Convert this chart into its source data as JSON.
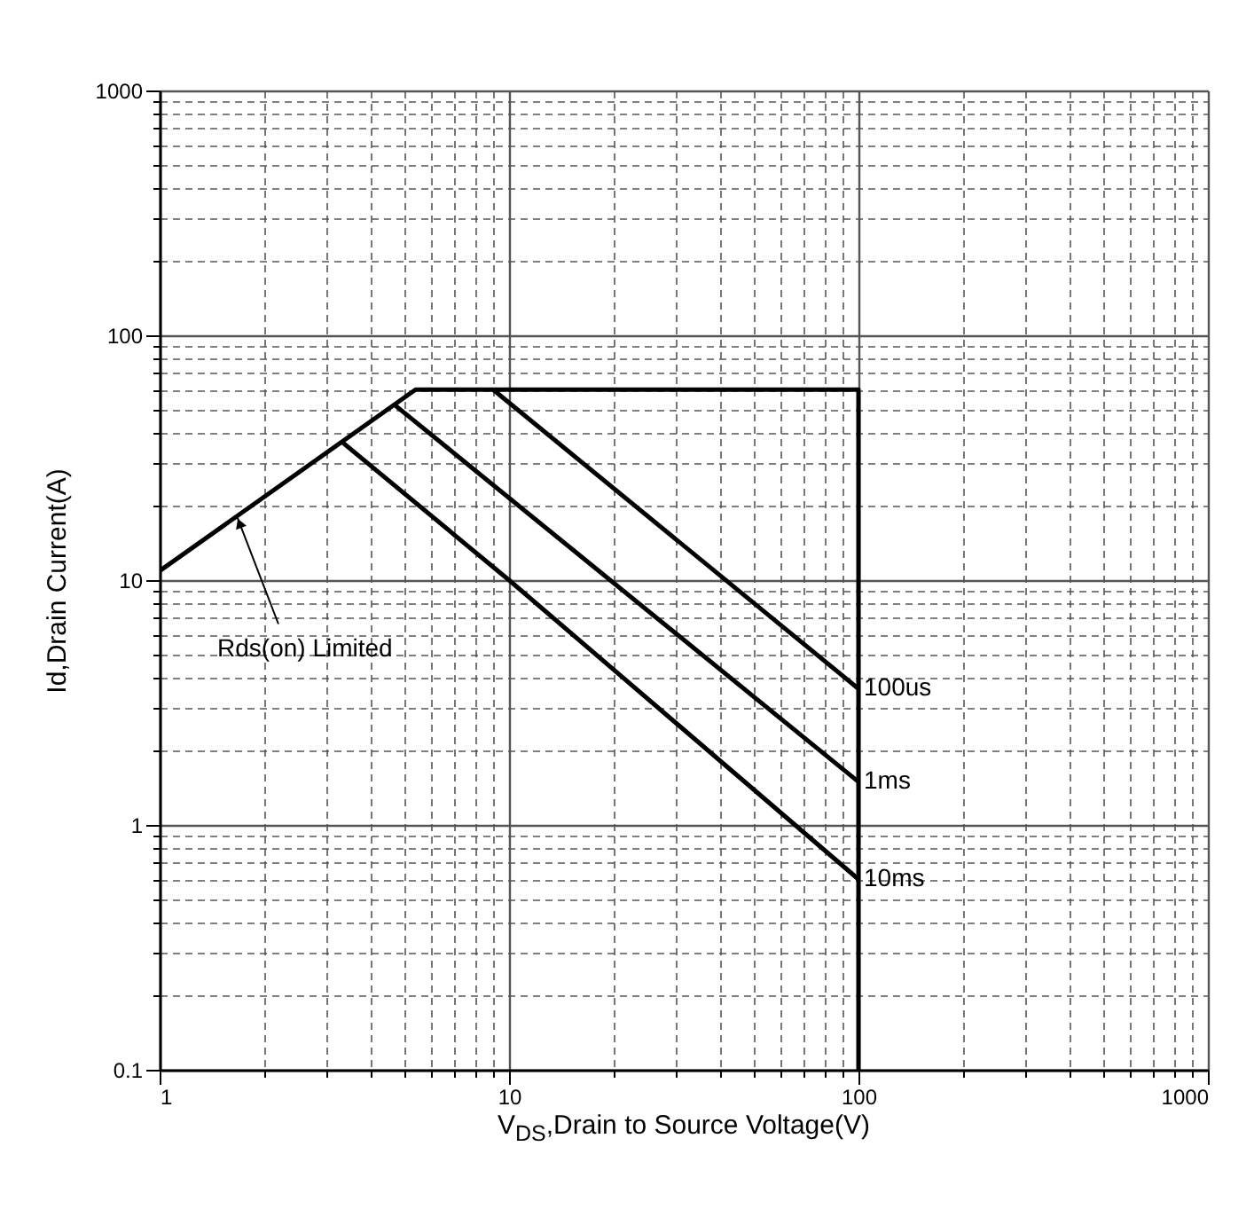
{
  "chart_data": {
    "type": "line",
    "xlabel": "V$_{DS}$,Drain to Source Voltage(V)",
    "ylabel": "Id,Drain Current(A)",
    "log": "xy",
    "grid": true,
    "xlim": [
      1,
      1000
    ],
    "xticks": [
      1,
      10,
      100,
      1000
    ],
    "ylim": [
      0.1,
      1000
    ],
    "yticks": [
      0.1,
      1,
      10,
      100,
      1000
    ],
    "series": [
      {
        "color": "#000000",
        "x": [
          1,
          5.4,
          100,
          100
        ],
        "values": [
          10.9,
          60,
          60,
          0.1
        ]
      },
      {
        "name": "100us",
        "color": "#000000",
        "x": [
          9,
          100
        ],
        "values": [
          60,
          3.6
        ]
      },
      {
        "name": "1ms",
        "color": "#000000",
        "x": [
          4.7,
          100
        ],
        "values": [
          52,
          1.5
        ]
      },
      {
        "name": "10ms",
        "color": "#000000",
        "x": [
          3.3,
          10,
          100
        ],
        "values": [
          37,
          10,
          0.6
        ]
      }
    ],
    "annotations": [
      {
        "text": "Rds(on) Limited",
        "x": 1.67,
        "y": 18
      }
    ]
  }
}
